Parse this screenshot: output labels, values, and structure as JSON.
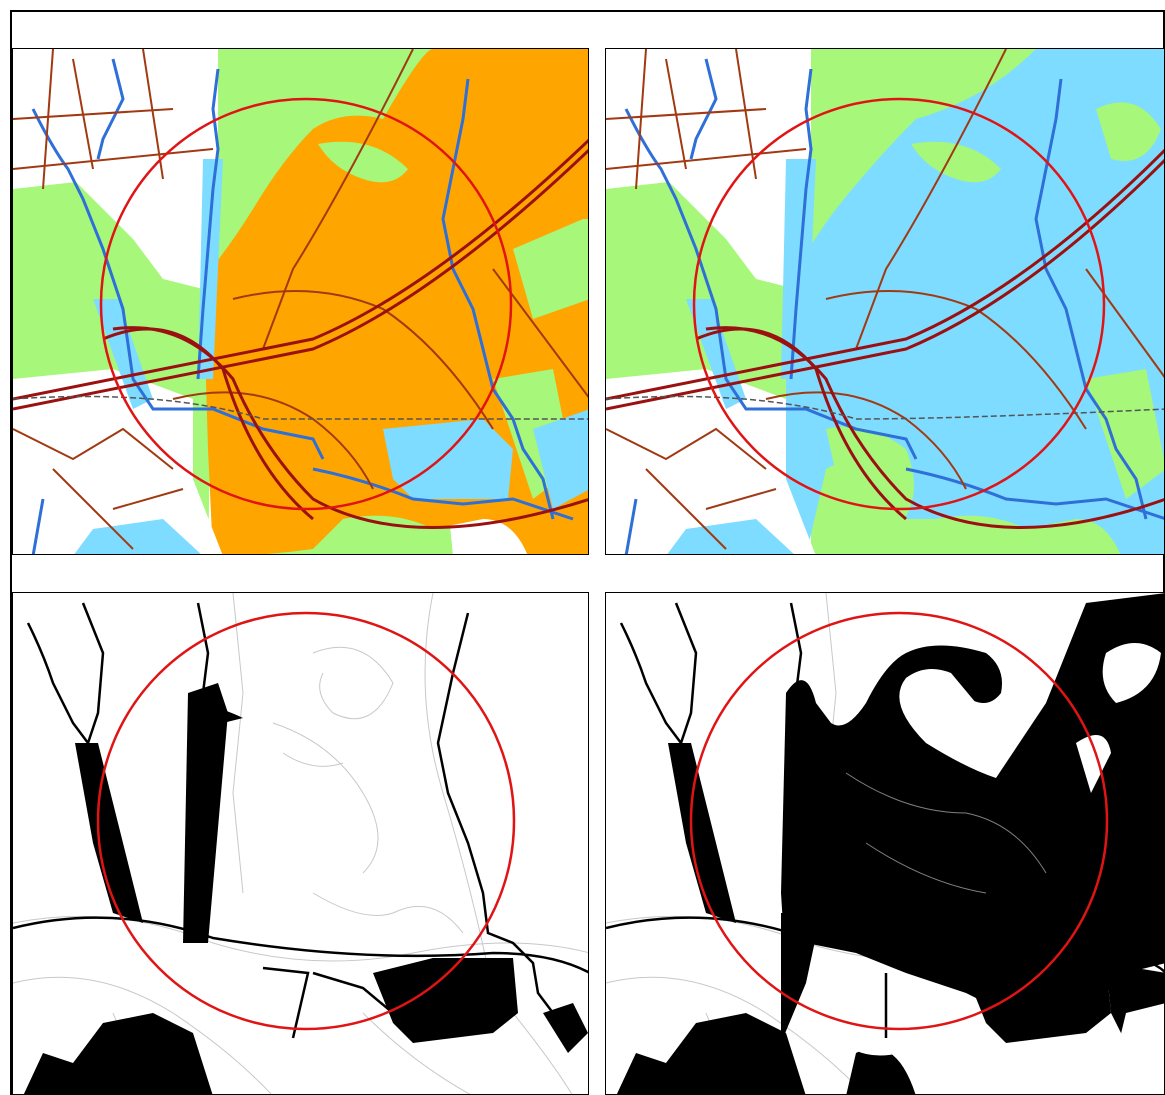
{
  "figure": {
    "panels": [
      {
        "id": "top-left",
        "mode": "land-cover",
        "flooded_fill": "orange"
      },
      {
        "id": "top-right",
        "mode": "land-cover",
        "flooded_fill": "light-blue"
      },
      {
        "id": "bottom-left",
        "mode": "binary-water-mask",
        "extent": "rivers-and-ponds"
      },
      {
        "id": "bottom-right",
        "mode": "binary-water-mask",
        "extent": "expanded"
      }
    ]
  },
  "colors": {
    "green_area": "#a6f77a",
    "orange_area": "#ffa500",
    "lightblue_area": "#7ddcff",
    "river": "#2e6fd8",
    "road": "#a13a12",
    "highway": "#9b1010",
    "railway": "#555555",
    "study_circle": "#e01414",
    "contour": "#c8c8c8",
    "mask": "#000000"
  }
}
